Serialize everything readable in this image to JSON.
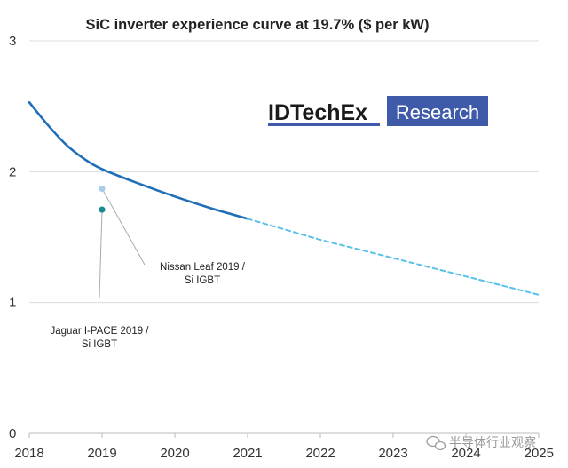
{
  "chart_data": {
    "type": "line",
    "title": "SiC inverter experience curve at 19.7% ($ per kW)",
    "xlabel": "",
    "ylabel": "",
    "xlim": [
      2018,
      2025
    ],
    "ylim": [
      0,
      3
    ],
    "x_ticks": [
      2018,
      2019,
      2020,
      2021,
      2022,
      2023,
      2024,
      2025
    ],
    "y_ticks": [
      0,
      1,
      2,
      3
    ],
    "grid": "horizontal",
    "legend": "none",
    "series": [
      {
        "style": "solid",
        "color": "#1f6fb8",
        "x": [
          2018,
          2018.25,
          2018.5,
          2018.75,
          2019,
          2019.5,
          2020,
          2020.5,
          2021
        ],
        "y": [
          2.53,
          2.36,
          2.21,
          2.1,
          2.02,
          1.91,
          1.81,
          1.72,
          1.64
        ]
      },
      {
        "style": "dashed",
        "color": "#5bc0e8",
        "x": [
          2021,
          2021.5,
          2022,
          2022.5,
          2023,
          2023.5,
          2024,
          2024.5,
          2025
        ],
        "y": [
          1.64,
          1.56,
          1.48,
          1.41,
          1.34,
          1.27,
          1.2,
          1.13,
          1.06
        ]
      }
    ],
    "points": [
      {
        "x": 2019,
        "y": 1.87,
        "color": "#a9cfe8"
      },
      {
        "x": 2019,
        "y": 1.71,
        "color": "#1b8a93"
      }
    ],
    "annotations": [
      {
        "lines": [
          "Nissan Leaf 2019 /",
          "Si IGBT"
        ],
        "point": 0
      },
      {
        "lines": [
          "Jaguar I-PACE 2019 /",
          "Si IGBT"
        ],
        "point": 1
      }
    ]
  },
  "logo": {
    "part1": "IDTechEx",
    "part2": "Research",
    "box_color": "#3e5aa8",
    "underline_color": "#3e5aa8"
  },
  "watermark": {
    "text": "半导体行业观察",
    "icon": "wechat-icon"
  },
  "colors": {
    "grid": "#dcdcdc",
    "axis": "#bbbbbb",
    "leader": "#aaaaaa"
  }
}
